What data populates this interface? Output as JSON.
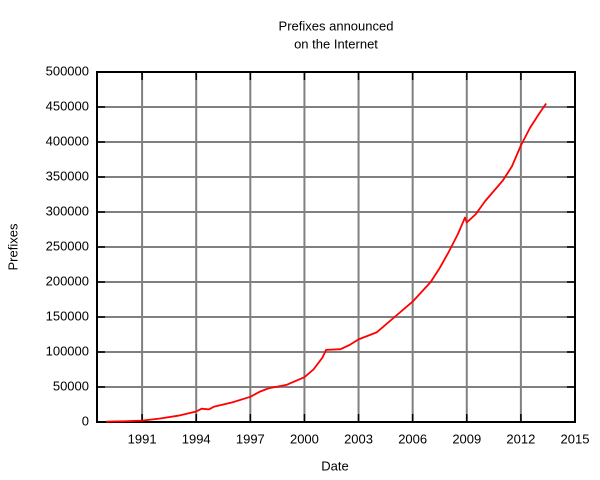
{
  "chart_data": {
    "type": "line",
    "title": [
      "Prefixes announced",
      "on the Internet"
    ],
    "xlabel": "Date",
    "ylabel": "Prefixes",
    "xlim": [
      1988.5,
      2015
    ],
    "xticks": [
      1991,
      1994,
      1997,
      2000,
      2003,
      2006,
      2009,
      2012,
      2015
    ],
    "ylim": [
      0,
      500000
    ],
    "yticks": [
      0,
      50000,
      100000,
      150000,
      200000,
      250000,
      300000,
      350000,
      400000,
      450000,
      500000
    ],
    "grid": true,
    "series": [
      {
        "color": "#ff0000",
        "x": [
          1989.0,
          1990.0,
          1991.0,
          1992.0,
          1993.0,
          1994.0,
          1994.3,
          1994.7,
          1995.0,
          1996.0,
          1997.0,
          1997.5,
          1998.0,
          1999.0,
          2000.0,
          2000.5,
          2001.0,
          2001.2,
          2002.0,
          2002.5,
          2003.0,
          2004.0,
          2005.0,
          2006.0,
          2007.0,
          2007.5,
          2008.0,
          2008.5,
          2008.9,
          2009.0,
          2009.5,
          2010.0,
          2010.5,
          2011.0,
          2011.5,
          2012.0,
          2012.5,
          2013.0,
          2013.4
        ],
        "values": [
          500,
          1000,
          2000,
          5000,
          9000,
          15000,
          19000,
          18000,
          22000,
          28000,
          36000,
          43000,
          48000,
          53000,
          64000,
          75000,
          92000,
          103000,
          104000,
          110000,
          118000,
          128000,
          150000,
          172000,
          200000,
          220000,
          243000,
          268000,
          292000,
          285000,
          297000,
          315000,
          330000,
          345000,
          365000,
          395000,
          420000,
          440000,
          455000
        ]
      }
    ]
  }
}
